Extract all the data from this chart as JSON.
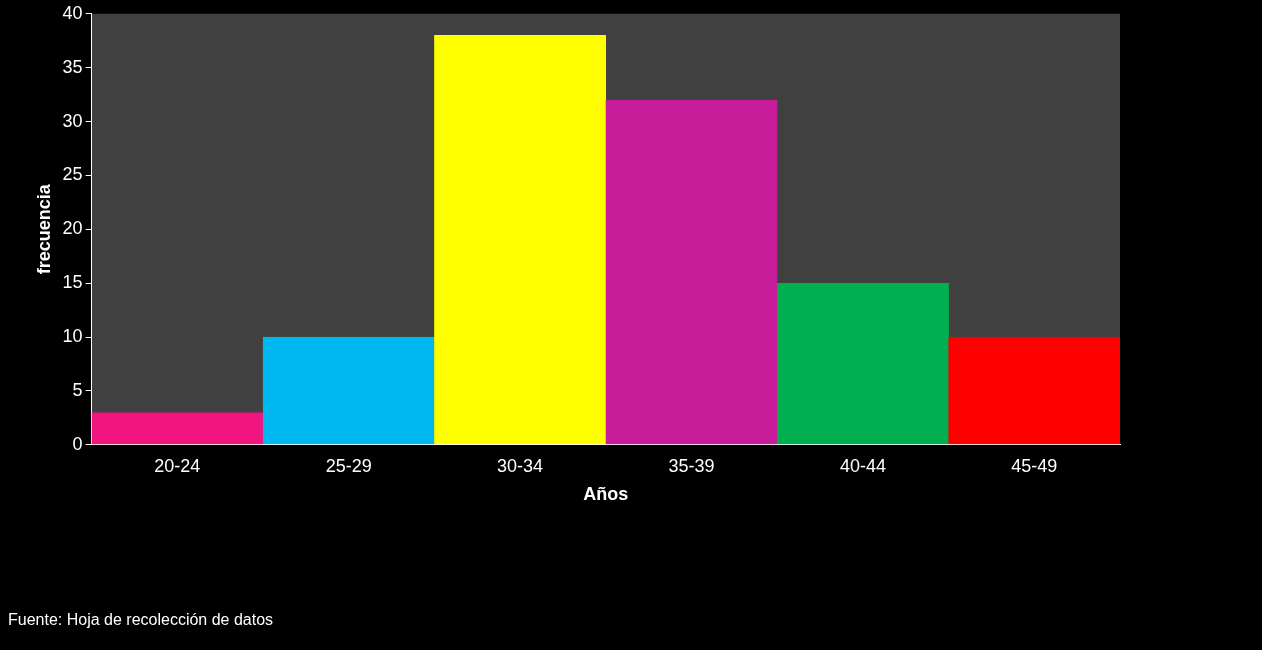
{
  "chart_data": {
    "type": "bar",
    "xlabel": "Años",
    "ylabel": "frecuencia",
    "categories": [
      "20-24",
      "25-29",
      "30-34",
      "35-39",
      "40-44",
      "45-49"
    ],
    "values": [
      3,
      10,
      38,
      32,
      15,
      10
    ],
    "colors": [
      "#f0157f",
      "#00b8f0",
      "#ffff00",
      "#c71d9a",
      "#00b050",
      "#ff0000"
    ],
    "ylim": [
      0,
      40
    ],
    "yticks": [
      0,
      5,
      10,
      15,
      20,
      25,
      30,
      35,
      40
    ],
    "grid": false,
    "legend": false,
    "annotations": [
      "Fuente: Hoja de recolección de datos"
    ]
  }
}
